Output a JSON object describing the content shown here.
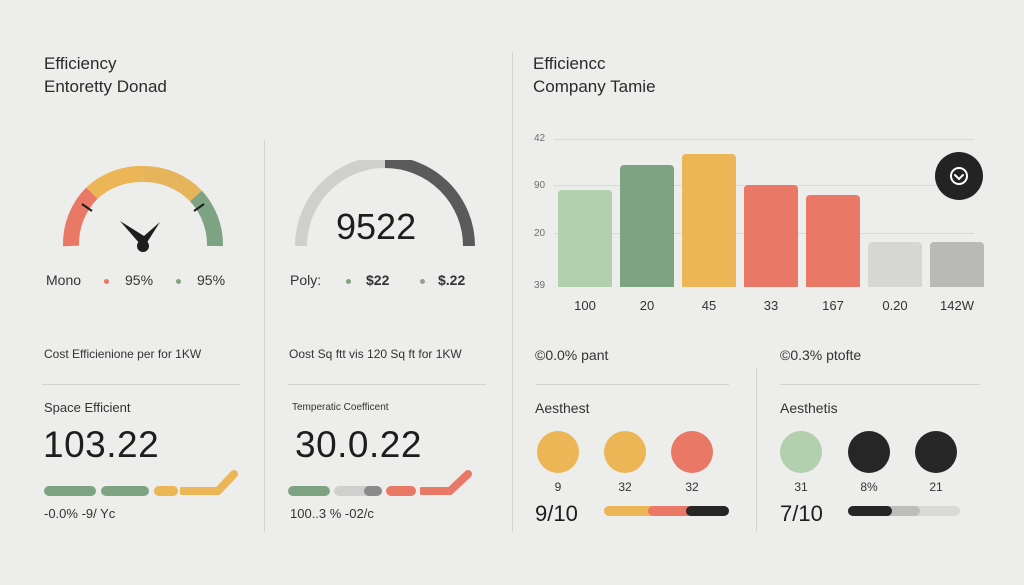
{
  "left": {
    "title_line1": "Efficiency",
    "title_line2": "Entoretty Donad"
  },
  "gauge1": {
    "label": "Mono",
    "value_a": "95%",
    "value_b": "95%"
  },
  "gauge2": {
    "value": "9522",
    "label": "Poly:",
    "value_a": "$22",
    "value_b": "$.22",
    "fill_fraction": 0.45
  },
  "cost1": "Cost Efficienione per for 1KW",
  "cost2": "Oost Sq ftt vis 120 Sq ft for 1KW",
  "card1": {
    "label": "Space Efficient",
    "value": "103.22",
    "footer": "-0.0% -9/ Yc"
  },
  "card2": {
    "label": "Temperatic Coefficent",
    "value": "30.0.22",
    "footer": "100..3 % -02/c"
  },
  "right": {
    "title_line1": "Efficiencc",
    "title_line2": "Company  Tamie"
  },
  "chart_data": {
    "type": "bar",
    "y_ticks": [
      "42",
      "90",
      "20",
      "39"
    ],
    "categories": [
      "100",
      "20",
      "45",
      "33",
      "167",
      "0.20",
      "142W"
    ],
    "values": [
      0.73,
      0.92,
      1.0,
      0.77,
      0.69,
      0.34,
      0.34
    ],
    "colors": [
      "#b2cfae",
      "#7ea383",
      "#ecb556",
      "#ea7867",
      "#ea7867",
      "#d6d6d4",
      "#b9b9b7"
    ],
    "grid": true
  },
  "action_button_icon": "circle-target-icon",
  "stats": {
    "left_pct": "©0.0% pant",
    "right_pct": "©0.3% ptofte"
  },
  "aesth1": {
    "label": "Aesthest",
    "dot_labels": [
      "9",
      "32",
      "32"
    ],
    "dot_colors": [
      "#ecb556",
      "#ecb556",
      "#ea7867"
    ],
    "score": "9/10"
  },
  "aesth2": {
    "label": "Aesthetis",
    "dot_labels": [
      "31",
      "8%",
      "21"
    ],
    "dot_colors": [
      "#b2cfae",
      "#262626",
      "#262626"
    ],
    "score": "7/10"
  },
  "colors": {
    "green": "#7ea383",
    "light_green": "#b2cfae",
    "amber": "#ecb556",
    "coral": "#ea7867",
    "dark": "#262626"
  }
}
